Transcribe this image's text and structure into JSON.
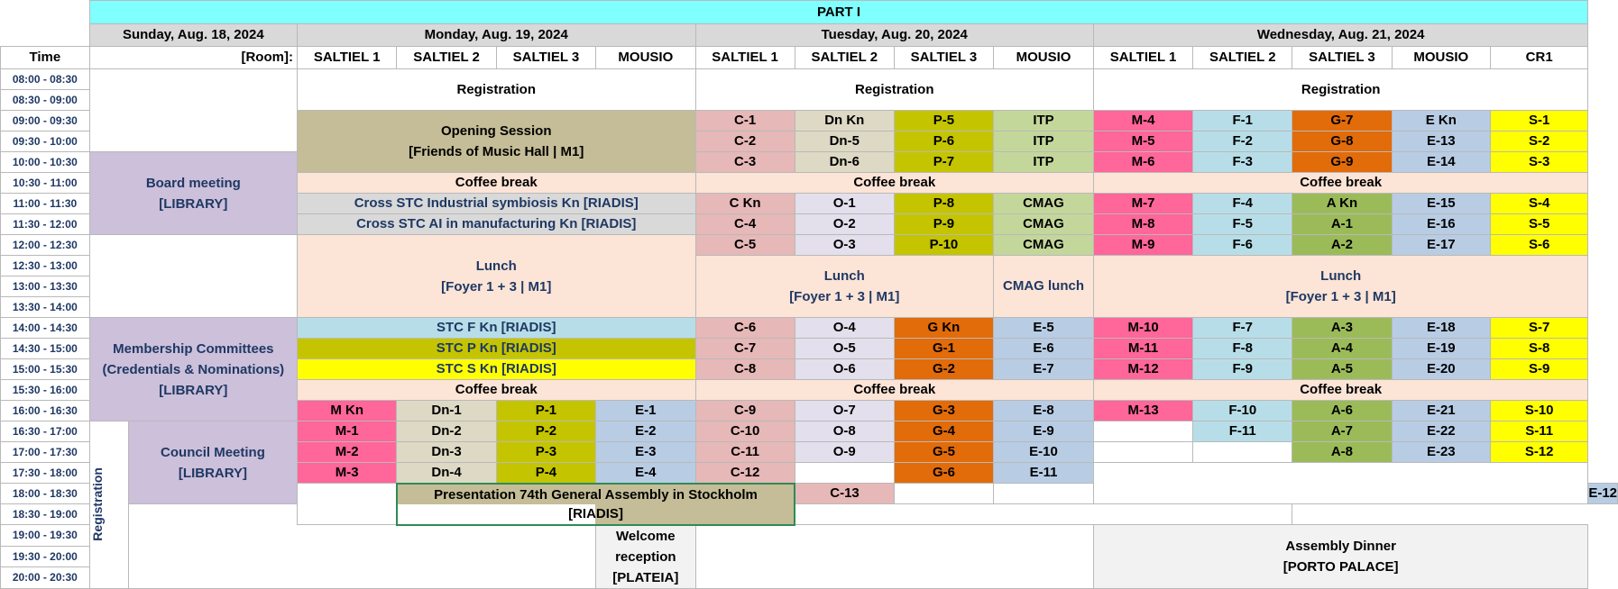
{
  "header": {
    "part": "PART I",
    "days": [
      "Sunday, Aug. 18, 2024",
      "Monday,  Aug. 19, 2024",
      "Tuesday, Aug. 20, 2024",
      "Wednesday, Aug. 21, 2024"
    ],
    "time_label": "Time",
    "room_label": "[Room]:"
  },
  "rooms": {
    "monday": [
      "SALTIEL 1",
      "SALTIEL 2",
      "SALTIEL 3",
      "MOUSIO"
    ],
    "tuesday": [
      "SALTIEL 1",
      "SALTIEL 2",
      "SALTIEL 3",
      "MOUSIO"
    ],
    "wednesday": [
      "SALTIEL 1",
      "SALTIEL 2",
      "SALTIEL 3",
      "MOUSIO",
      "CR1"
    ]
  },
  "times": [
    "08:00 - 08:30",
    "08:30 - 09:00",
    "09:00 - 09:30",
    "09:30 - 10:00",
    "10:00 - 10:30",
    "10:30 - 11:00",
    "11:00 - 11:30",
    "11:30 - 12:00",
    "12:00 - 12:30",
    "12:30 - 13:00",
    "13:00 - 13:30",
    "13:30 - 14:00",
    "14:00 - 14:30",
    "14:30 - 15:00",
    "15:00 - 15:30",
    "15:30 - 16:00",
    "16:00 - 16:30",
    "16:30 - 17:00",
    "17:00 - 17:30",
    "17:30 - 18:00",
    "18:00 - 18:30",
    "18:30 - 19:00",
    "19:00 - 19:30",
    "19:30 - 20:00",
    "20:00 - 20:30"
  ],
  "sunday": {
    "board": [
      "Board meeting",
      "[LIBRARY]"
    ],
    "membership": [
      "Membership Committees",
      "(Credentials & Nominations)",
      "[LIBRARY]"
    ],
    "registration": "Registration",
    "council": [
      "Council Meeting",
      "[LIBRARY]"
    ],
    "welcome": [
      "Welcome reception",
      "[PLATEIA]"
    ]
  },
  "monday": {
    "registration": "Registration",
    "opening": [
      "Opening Session",
      "[Friends of Music Hall | M1]"
    ],
    "coffee1": "Coffee break",
    "cross1": "Cross STC Industrial symbiosis Kn   [RIADIS]",
    "cross2": "Cross STC AI in manufacturing Kn   [RIADIS]",
    "lunch": [
      "Lunch",
      "[Foyer 1 + 3 | M1]"
    ],
    "stcf": "STC F Kn   [RIADIS]",
    "stcp": "STC P Kn   [RIADIS]",
    "stcs": "STC S Kn   [RIADIS]",
    "coffee2": "Coffee break",
    "sessions": [
      [
        "M Kn",
        "Dn-1",
        "P-1",
        "E-1"
      ],
      [
        "M-1",
        "Dn-2",
        "P-2",
        "E-2"
      ],
      [
        "M-2",
        "Dn-3",
        "P-3",
        "E-3"
      ],
      [
        "M-3",
        "Dn-4",
        "P-4",
        "E-4"
      ]
    ],
    "presentation": [
      "Presentation 74th General Assembly in Stockholm",
      "[RIADIS]"
    ]
  },
  "tuesday": {
    "registration": "Registration",
    "am1": [
      [
        "C-1",
        "Dn Kn",
        "P-5",
        "ITP"
      ],
      [
        "C-2",
        "Dn-5",
        "P-6",
        "ITP"
      ],
      [
        "C-3",
        "Dn-6",
        "P-7",
        "ITP"
      ]
    ],
    "coffee1": "Coffee break",
    "am2": [
      [
        "C Kn",
        "O-1",
        "P-8",
        "CMAG"
      ],
      [
        "C-4",
        "O-2",
        "P-9",
        "CMAG"
      ],
      [
        "C-5",
        "O-3",
        "P-10",
        "CMAG"
      ]
    ],
    "lunch": [
      "Lunch",
      "[Foyer 1 + 3 | M1]"
    ],
    "cmag_lunch": "CMAG lunch",
    "pm1": [
      [
        "C-6",
        "O-4",
        "G Kn",
        "E-5"
      ],
      [
        "C-7",
        "O-5",
        "G-1",
        "E-6"
      ],
      [
        "C-8",
        "O-6",
        "G-2",
        "E-7"
      ]
    ],
    "coffee2": "Coffee break",
    "pm2": [
      [
        "C-9",
        "O-7",
        "G-3",
        "E-8"
      ],
      [
        "C-10",
        "O-8",
        "G-4",
        "E-9"
      ],
      [
        "C-11",
        "O-9",
        "G-5",
        "E-10"
      ],
      [
        "C-12",
        "",
        "G-6",
        "E-11"
      ],
      [
        "C-13",
        "",
        "",
        "E-12"
      ]
    ]
  },
  "wednesday": {
    "registration": "Registration",
    "am1": [
      [
        "M-4",
        "F-1",
        "G-7",
        "E Kn",
        "S-1"
      ],
      [
        "M-5",
        "F-2",
        "G-8",
        "E-13",
        "S-2"
      ],
      [
        "M-6",
        "F-3",
        "G-9",
        "E-14",
        "S-3"
      ]
    ],
    "coffee1": "Coffee break",
    "am2": [
      [
        "M-7",
        "F-4",
        "A Kn",
        "E-15",
        "S-4"
      ],
      [
        "M-8",
        "F-5",
        "A-1",
        "E-16",
        "S-5"
      ],
      [
        "M-9",
        "F-6",
        "A-2",
        "E-17",
        "S-6"
      ]
    ],
    "lunch": [
      "Lunch",
      "[Foyer 1 + 3 | M1]"
    ],
    "pm1": [
      [
        "M-10",
        "F-7",
        "A-3",
        "E-18",
        "S-7"
      ],
      [
        "M-11",
        "F-8",
        "A-4",
        "E-19",
        "S-8"
      ],
      [
        "M-12",
        "F-9",
        "A-5",
        "E-20",
        "S-9"
      ]
    ],
    "coffee2": "Coffee break",
    "pm2": [
      [
        "M-13",
        "F-10",
        "A-6",
        "E-21",
        "S-10"
      ],
      [
        "",
        "F-11",
        "A-7",
        "E-22",
        "S-11"
      ],
      [
        "",
        "",
        "A-8",
        "E-23",
        "S-12"
      ]
    ],
    "dinner": [
      "Assembly Dinner",
      "[PORTO PALACE]"
    ]
  }
}
